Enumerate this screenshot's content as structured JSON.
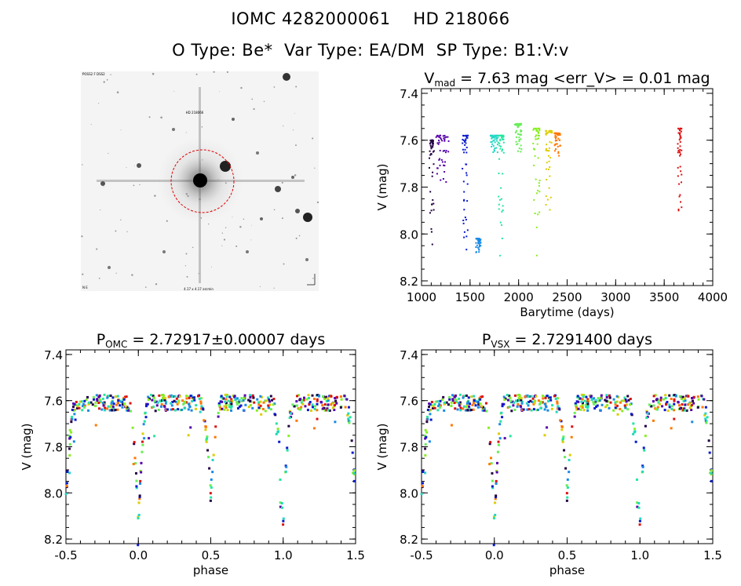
{
  "header": {
    "title_line1": "IOMC 4282000061    HD 218066",
    "title_line2": "O Type: Be*  Var Type: EA/DM  SP Type: B1:V:v"
  },
  "thumbnail": {
    "label_top_left": "POSS2 F DSS2",
    "label_center": "HD 218066",
    "label_bottom_center": "4.17 x 4.17 arcmin",
    "label_bottom_left": "N E"
  },
  "chart_data": [
    {
      "type": "scatter",
      "title": "V_mad = 7.63 mag <err_V> = 0.01 mag",
      "title_parts": {
        "main": "V",
        "sub": "mad",
        "rest": " = 7.63 mag <err_V> = 0.01 mag"
      },
      "xlabel": "Barytime (days)",
      "ylabel": "V (mag)",
      "xlim": [
        1000,
        4000
      ],
      "ylim": [
        8.22,
        7.38
      ],
      "y_inverted": true,
      "xticks": [
        1000,
        1500,
        2000,
        2500,
        3000,
        3500,
        4000
      ],
      "yticks": [
        "7.4",
        "7.6",
        "7.8",
        "8.0",
        "8.2"
      ],
      "color_map": "rainbow (time)",
      "groups": [
        {
          "x": [
            1080,
            1130
          ],
          "y": [
            7.6,
            8.05
          ],
          "color": "#220044"
        },
        {
          "x": [
            1150,
            1280
          ],
          "y": [
            7.58,
            7.78
          ],
          "color": "#5500aa"
        },
        {
          "x": [
            1420,
            1480
          ],
          "y": [
            7.58,
            8.08
          ],
          "color": "#0a1acc"
        },
        {
          "x": [
            1560,
            1610
          ],
          "y": [
            8.02,
            8.08
          ],
          "color": "#1a8ae6"
        },
        {
          "x": [
            1710,
            1790
          ],
          "y": [
            7.58,
            7.66
          ],
          "color": "#22d6c6"
        },
        {
          "x": [
            1790,
            1850
          ],
          "y": [
            7.58,
            8.13
          ],
          "color": "#22e6a0"
        },
        {
          "x": [
            1960,
            2030
          ],
          "y": [
            7.53,
            7.65
          ],
          "color": "#66ee55"
        },
        {
          "x": [
            2150,
            2220
          ],
          "y": [
            7.55,
            8.15
          ],
          "color": "#88ee22"
        },
        {
          "x": [
            2280,
            2350
          ],
          "y": [
            7.56,
            7.97
          ],
          "color": "#ddcc00"
        },
        {
          "x": [
            2370,
            2430
          ],
          "y": [
            7.57,
            7.68
          ],
          "color": "#ff7700"
        },
        {
          "x": [
            3640,
            3680
          ],
          "y": [
            7.55,
            7.93
          ],
          "color": "#dd1111"
        }
      ]
    },
    {
      "type": "scatter",
      "title": "P_OMC = 2.72917±0.00007 days",
      "title_parts": {
        "main": "P",
        "sub": "OMC",
        "rest": " = 2.72917±0.00007 days"
      },
      "xlabel": "phase",
      "ylabel": "V (mag)",
      "xlim": [
        -0.5,
        1.5
      ],
      "ylim": [
        8.22,
        7.38
      ],
      "y_inverted": true,
      "xticks": [
        "-0.5",
        "0.0",
        "0.5",
        "1.0",
        "1.5"
      ],
      "yticks": [
        "7.4",
        "7.6",
        "7.8",
        "8.0",
        "8.2"
      ],
      "out_of_eclipse_mag": 7.61,
      "primary_eclipse": {
        "phase": 0.0,
        "depth_mag": 8.14
      },
      "secondary_eclipse": {
        "phase": 0.5,
        "depth_mag": 8.02
      }
    },
    {
      "type": "scatter",
      "title": "P_VSX = 2.7291400 days",
      "title_parts": {
        "main": "P",
        "sub": "VSX",
        "rest": " = 2.7291400 days"
      },
      "xlabel": "phase",
      "ylabel": "V (mag)",
      "xlim": [
        -0.5,
        1.5
      ],
      "ylim": [
        8.22,
        7.38
      ],
      "y_inverted": true,
      "xticks": [
        "-0.5",
        "0.0",
        "0.5",
        "1.0",
        "1.5"
      ],
      "yticks": [
        "7.4",
        "7.6",
        "7.8",
        "8.0",
        "8.2"
      ],
      "out_of_eclipse_mag": 7.61,
      "primary_eclipse": {
        "phase": 0.0,
        "depth_mag": 8.14
      },
      "secondary_eclipse": {
        "phase": 0.5,
        "depth_mag": 8.02
      }
    }
  ]
}
